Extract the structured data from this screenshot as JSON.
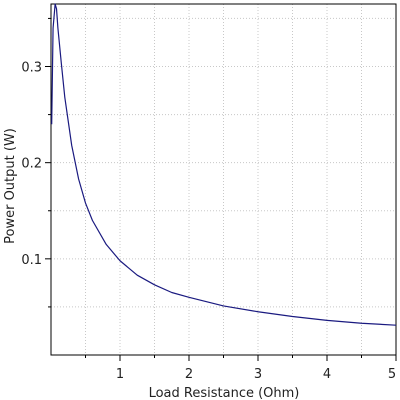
{
  "chart_data": {
    "type": "line",
    "title": "",
    "xlabel": "Load Resistance (Ohm)",
    "ylabel": "Power Output (W)",
    "xlim": [
      0,
      5
    ],
    "ylim": [
      0,
      0.365
    ],
    "x_ticks": [
      1,
      2,
      3,
      4,
      5
    ],
    "x_tick_labels": [
      "1",
      "2",
      "3",
      "4",
      "5"
    ],
    "y_ticks": [
      0.1,
      0.2,
      0.3
    ],
    "y_tick_labels": [
      "0.1",
      "0.2",
      "0.3"
    ],
    "grid": true,
    "line_color": "#1a1a80",
    "series": [
      {
        "x": [
          0.01,
          0.03,
          0.06,
          0.08,
          0.1,
          0.15,
          0.2,
          0.3,
          0.4,
          0.5,
          0.6,
          0.8,
          1.0,
          1.25,
          1.5,
          1.75,
          2.0,
          2.5,
          3.0,
          3.5,
          4.0,
          4.5,
          5.0
        ],
        "y": [
          0.24,
          0.34,
          0.37,
          0.36,
          0.34,
          0.303,
          0.268,
          0.218,
          0.183,
          0.158,
          0.14,
          0.115,
          0.098,
          0.083,
          0.073,
          0.065,
          0.06,
          0.051,
          0.045,
          0.04,
          0.036,
          0.033,
          0.031
        ]
      }
    ]
  }
}
